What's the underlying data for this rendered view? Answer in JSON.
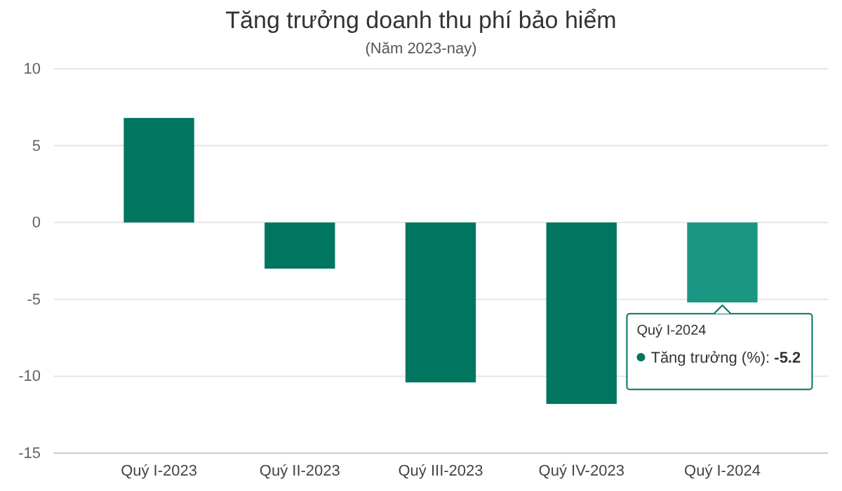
{
  "chart_data": {
    "type": "bar",
    "title": "Tăng trưởng doanh thu phí bảo hiểm",
    "subtitle": "(Năm 2023-nay)",
    "categories": [
      "Quý I-2023",
      "Quý II-2023",
      "Quý III-2023",
      "Quý IV-2023",
      "Quý I-2024"
    ],
    "series": [
      {
        "color": "#00755f",
        "colors": [
          "#00755f",
          "#00755f",
          "#00755f",
          "#00755f",
          "#1a9683"
        ],
        "values": [
          6.8,
          -3.0,
          -10.4,
          -11.8,
          -5.2
        ]
      }
    ],
    "annotations": [
      "Quý I-2024",
      "Tăng trưởng (%): -5.2"
    ],
    "ylim": [
      -15,
      10
    ],
    "yticks": [
      -15,
      -10,
      -5,
      0,
      5,
      10
    ],
    "grid": "y"
  }
}
